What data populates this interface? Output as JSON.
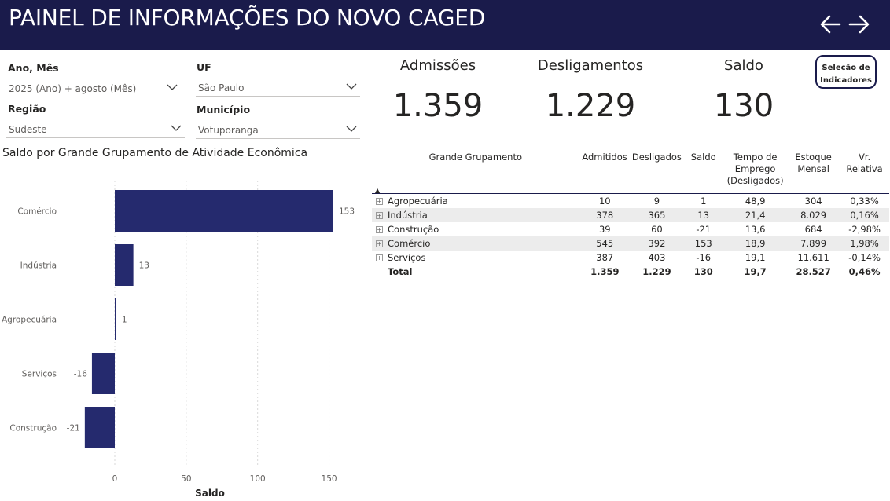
{
  "header": {
    "title": "PAINEL DE INFORMAÇÕES DO NOVO CAGED"
  },
  "nav": {
    "back_icon": "arrow-left-icon",
    "forward_icon": "arrow-right-icon"
  },
  "filters": {
    "ano_mes": {
      "label": "Ano, Mês",
      "value": "2025 (Ano) + agosto (Mês)"
    },
    "uf": {
      "label": "UF",
      "value": "São Paulo"
    },
    "regiao": {
      "label": "Região",
      "value": "Sudeste"
    },
    "municipio": {
      "label": "Município",
      "value": "Votuporanga"
    }
  },
  "kpis": {
    "admissoes": {
      "label": "Admissões",
      "value": "1.359"
    },
    "desligamentos": {
      "label": "Desligamentos",
      "value": "1.229"
    },
    "saldo": {
      "label": "Saldo",
      "value": "130"
    }
  },
  "selection_button": {
    "line1": "Seleção de",
    "line2": "Indicadores"
  },
  "table": {
    "headers": [
      "Grande Grupamento",
      "Admitidos",
      "Desligados",
      "Saldo",
      "Tempo de Emprego (Desligados)",
      "Estoque Mensal",
      "Vr. Relativa"
    ],
    "rows": [
      {
        "name": "Agropecuária",
        "cells": [
          "10",
          "9",
          "1",
          "48,9",
          "304",
          "0,33%"
        ]
      },
      {
        "name": "Indústria",
        "cells": [
          "378",
          "365",
          "13",
          "21,4",
          "8.029",
          "0,16%"
        ]
      },
      {
        "name": "Construção",
        "cells": [
          "39",
          "60",
          "-21",
          "13,6",
          "684",
          "-2,98%"
        ]
      },
      {
        "name": "Comércio",
        "cells": [
          "545",
          "392",
          "153",
          "18,9",
          "7.899",
          "1,98%"
        ]
      },
      {
        "name": "Serviços",
        "cells": [
          "387",
          "403",
          "-16",
          "19,1",
          "11.611",
          "-0,14%"
        ]
      }
    ],
    "total": {
      "name": "Total",
      "cells": [
        "1.359",
        "1.229",
        "130",
        "19,7",
        "28.527",
        "0,46%"
      ]
    }
  },
  "chart_title": "Saldo por Grande Grupamento de Atividade Econômica",
  "chart_data": {
    "type": "bar",
    "orientation": "horizontal",
    "title": "Saldo por Grande Grupamento de Atividade Econômica",
    "categories": [
      "Comércio",
      "Indústria",
      "Agropecuária",
      "Serviços",
      "Construção"
    ],
    "values": [
      153,
      13,
      1,
      -16,
      -21
    ],
    "xlabel": "Saldo",
    "ylabel": "",
    "xlim": [
      -25,
      165
    ],
    "xticks": [
      0,
      50,
      100,
      150
    ],
    "grid": true,
    "bar_color": "#252a6e"
  },
  "colors": {
    "header_bg": "#1a1b4b",
    "bar": "#252a6e",
    "row_alt": "#ececec"
  }
}
